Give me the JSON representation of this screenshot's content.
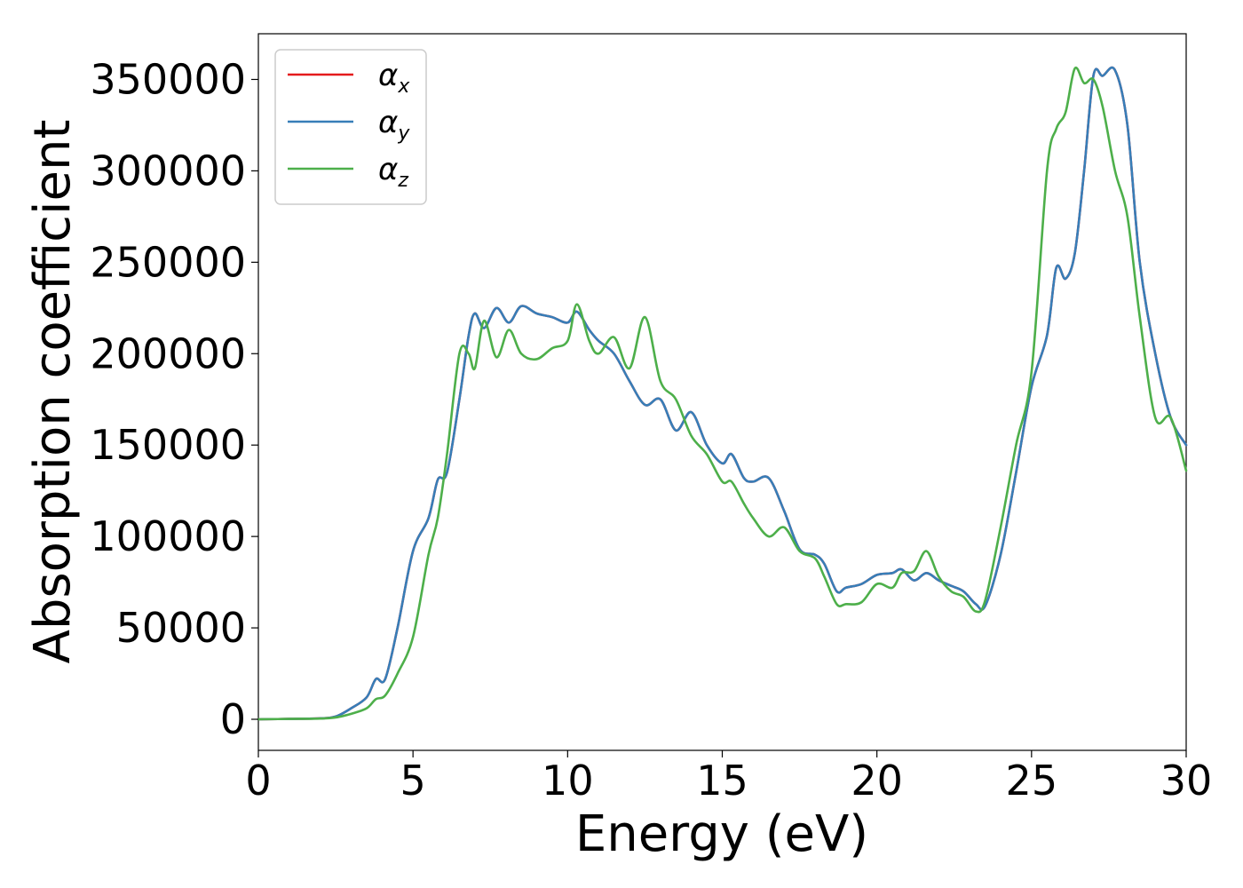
{
  "chart_data": {
    "type": "line",
    "title": "",
    "xlabel": "Energy (eV)",
    "ylabel": "Absorption coefficient",
    "xlim": [
      0,
      30
    ],
    "ylim": [
      -17000,
      375000
    ],
    "xticks": [
      "0",
      "5",
      "10",
      "15",
      "20",
      "25",
      "30"
    ],
    "yticks": [
      "0",
      "50000",
      "100000",
      "150000",
      "200000",
      "250000",
      "300000",
      "350000"
    ],
    "grid": false,
    "legend_position": "top-left",
    "x": [
      0,
      1,
      2,
      2.5,
      3,
      3.5,
      3.8,
      4.1,
      4.5,
      5,
      5.5,
      5.8,
      6.1,
      6.5,
      6.8,
      7,
      7.3,
      7.7,
      8.1,
      8.5,
      9,
      9.5,
      10,
      10.3,
      10.7,
      11,
      11.5,
      12,
      12.5,
      13,
      13.5,
      14,
      14.5,
      15,
      15.3,
      15.7,
      16,
      16.5,
      17,
      17.5,
      18,
      18.3,
      18.7,
      19,
      19.5,
      20,
      20.5,
      20.8,
      21.2,
      21.6,
      22,
      22.4,
      22.8,
      23.2,
      23.5,
      24,
      24.5,
      25,
      25.5,
      25.8,
      26.1,
      26.4,
      26.7,
      27,
      27.3,
      27.7,
      28.1,
      28.5,
      29,
      29.5,
      30
    ],
    "series": [
      {
        "name": "α_x",
        "color": "#e41a1c",
        "values": [
          0,
          200,
          500,
          1500,
          6000,
          12000,
          22000,
          22000,
          50000,
          92000,
          110000,
          131000,
          135000,
          175000,
          210000,
          222000,
          214000,
          225000,
          217000,
          226000,
          222000,
          220000,
          217000,
          223000,
          213000,
          207000,
          200000,
          185000,
          172000,
          175000,
          158000,
          168000,
          150000,
          140000,
          145000,
          132000,
          130000,
          132000,
          114000,
          93000,
          90000,
          85000,
          70000,
          72000,
          74000,
          79000,
          80000,
          82000,
          76000,
          80000,
          76000,
          73000,
          70000,
          63000,
          62000,
          90000,
          135000,
          182000,
          210000,
          247000,
          241000,
          255000,
          300000,
          352000,
          352000,
          355000,
          325000,
          250000,
          200000,
          165000,
          150000
        ]
      },
      {
        "name": "α_y",
        "color": "#377eb8",
        "values": [
          0,
          200,
          500,
          1500,
          6000,
          12000,
          22000,
          22000,
          50000,
          92000,
          110000,
          131000,
          135000,
          175000,
          210000,
          222000,
          214000,
          225000,
          217000,
          226000,
          222000,
          220000,
          217000,
          223000,
          213000,
          207000,
          200000,
          185000,
          172000,
          175000,
          158000,
          168000,
          150000,
          140000,
          145000,
          132000,
          130000,
          132000,
          114000,
          93000,
          90000,
          85000,
          70000,
          72000,
          74000,
          79000,
          80000,
          82000,
          76000,
          80000,
          76000,
          73000,
          70000,
          63000,
          62000,
          90000,
          135000,
          182000,
          210000,
          247000,
          241000,
          255000,
          300000,
          352000,
          352000,
          355000,
          325000,
          250000,
          200000,
          165000,
          150000
        ]
      },
      {
        "name": "α_z",
        "color": "#4daf4a",
        "values": [
          0,
          200,
          400,
          1000,
          3000,
          6000,
          11000,
          13000,
          25000,
          45000,
          90000,
          110000,
          145000,
          200000,
          200000,
          192000,
          218000,
          198000,
          213000,
          200000,
          197000,
          203000,
          207000,
          227000,
          207000,
          200000,
          209000,
          192000,
          220000,
          185000,
          175000,
          155000,
          145000,
          130000,
          130000,
          118000,
          110000,
          100000,
          105000,
          92000,
          88000,
          78000,
          63000,
          63000,
          64000,
          74000,
          72000,
          80000,
          81000,
          92000,
          78000,
          70000,
          67000,
          59000,
          65000,
          105000,
          150000,
          190000,
          300000,
          323000,
          332000,
          356000,
          348000,
          350000,
          335000,
          300000,
          275000,
          220000,
          165000,
          165000,
          136000
        ]
      }
    ]
  }
}
